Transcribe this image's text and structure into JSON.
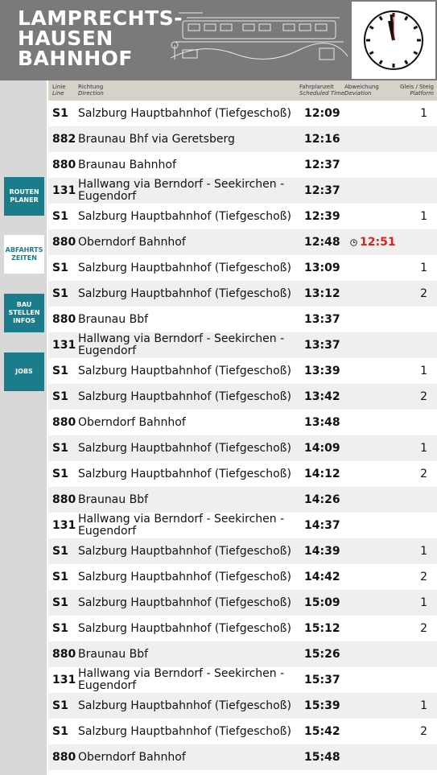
{
  "header": {
    "title_lines": [
      "LAMPRECHTS-",
      "HAUSEN",
      "BAHNHOF"
    ]
  },
  "menu": [
    "ROUTEN PLANER",
    "ABFAHRTS ZEITEN",
    "BAU STELLEN INFOS",
    "JOBS"
  ],
  "active_menu": 1,
  "table": {
    "columns": [
      {
        "de": "Linie",
        "en": "Line"
      },
      {
        "de": "Richtung",
        "en": "Direction"
      },
      {
        "de": "Fahrplanzeit",
        "en": "Scheduled Time"
      },
      {
        "de": "Abweichung",
        "en": "Deviation"
      },
      {
        "de": "Gleis / Steig",
        "en": "Platform"
      }
    ],
    "rows": [
      {
        "line": "S1",
        "direction": "Salzburg Hauptbahnhof (Tiefgeschoß)",
        "time": "12:09",
        "platform": "1"
      },
      {
        "line": "882",
        "direction": "Braunau Bhf via Geretsberg",
        "time": "12:16"
      },
      {
        "line": "880",
        "direction": "Braunau Bahnhof",
        "time": "12:37"
      },
      {
        "line": "131",
        "direction": "Hallwang via Berndorf - Seekirchen - Eugendorf",
        "time": "12:37"
      },
      {
        "line": "S1",
        "direction": "Salzburg Hauptbahnhof (Tiefgeschoß)",
        "time": "12:39",
        "platform": "1"
      },
      {
        "line": "880",
        "direction": "Oberndorf Bahnhof",
        "time": "12:48",
        "deviation": "12:51"
      },
      {
        "line": "S1",
        "direction": "Salzburg Hauptbahnhof (Tiefgeschoß)",
        "time": "13:09",
        "platform": "1"
      },
      {
        "line": "S1",
        "direction": "Salzburg Hauptbahnhof (Tiefgeschoß)",
        "time": "13:12",
        "platform": "2"
      },
      {
        "line": "880",
        "direction": "Braunau Bbf",
        "time": "13:37"
      },
      {
        "line": "131",
        "direction": "Hallwang via Berndorf - Seekirchen - Eugendorf",
        "time": "13:37"
      },
      {
        "line": "S1",
        "direction": "Salzburg Hauptbahnhof (Tiefgeschoß)",
        "time": "13:39",
        "platform": "1"
      },
      {
        "line": "S1",
        "direction": "Salzburg Hauptbahnhof (Tiefgeschoß)",
        "time": "13:42",
        "platform": "2"
      },
      {
        "line": "880",
        "direction": "Oberndorf Bahnhof",
        "time": "13:48"
      },
      {
        "line": "S1",
        "direction": "Salzburg Hauptbahnhof (Tiefgeschoß)",
        "time": "14:09",
        "platform": "1"
      },
      {
        "line": "S1",
        "direction": "Salzburg Hauptbahnhof (Tiefgeschoß)",
        "time": "14:12",
        "platform": "2"
      },
      {
        "line": "880",
        "direction": "Braunau Bbf",
        "time": "14:26"
      },
      {
        "line": "131",
        "direction": "Hallwang via Berndorf - Seekirchen - Eugendorf",
        "time": "14:37"
      },
      {
        "line": "S1",
        "direction": "Salzburg Hauptbahnhof (Tiefgeschoß)",
        "time": "14:39",
        "platform": "1"
      },
      {
        "line": "S1",
        "direction": "Salzburg Hauptbahnhof (Tiefgeschoß)",
        "time": "14:42",
        "platform": "2"
      },
      {
        "line": "S1",
        "direction": "Salzburg Hauptbahnhof (Tiefgeschoß)",
        "time": "15:09",
        "platform": "1"
      },
      {
        "line": "S1",
        "direction": "Salzburg Hauptbahnhof (Tiefgeschoß)",
        "time": "15:12",
        "platform": "2"
      },
      {
        "line": "880",
        "direction": "Braunau Bbf",
        "time": "15:26"
      },
      {
        "line": "131",
        "direction": "Hallwang via Berndorf - Seekirchen - Eugendorf",
        "time": "15:37"
      },
      {
        "line": "S1",
        "direction": "Salzburg Hauptbahnhof (Tiefgeschoß)",
        "time": "15:39",
        "platform": "1"
      },
      {
        "line": "S1",
        "direction": "Salzburg Hauptbahnhof (Tiefgeschoß)",
        "time": "15:42",
        "platform": "2"
      },
      {
        "line": "880",
        "direction": "Oberndorf Bahnhof",
        "time": "15:48"
      }
    ]
  }
}
